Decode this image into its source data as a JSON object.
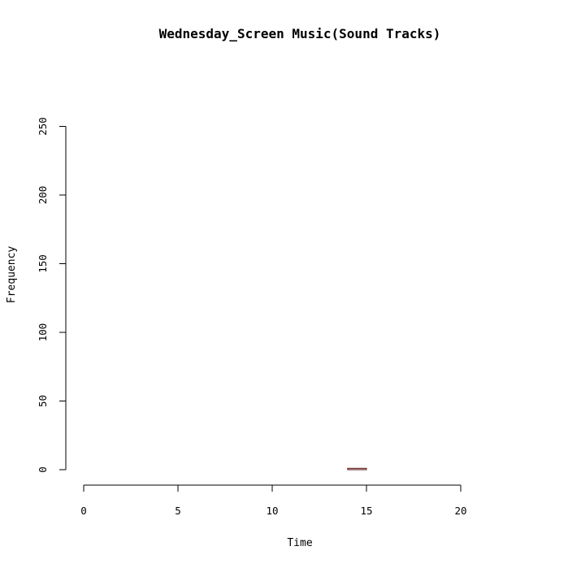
{
  "chart_data": {
    "type": "bar",
    "title": "Wednesday_Screen Music(Sound Tracks)",
    "xlabel": "Time",
    "ylabel": "Frequency",
    "xlim": [
      0,
      24
    ],
    "ylim": [
      0,
      250
    ],
    "x_ticks": [
      0,
      5,
      10,
      15,
      20
    ],
    "y_ticks": [
      0,
      50,
      100,
      150,
      200,
      250
    ],
    "x_tick_labels": [
      "0",
      "5",
      "10",
      "15",
      "20"
    ],
    "y_tick_labels": [
      "0",
      "50",
      "100",
      "150",
      "200",
      "250"
    ],
    "x": [
      0,
      1,
      2,
      3,
      4,
      5,
      6,
      7,
      8,
      9,
      10,
      11,
      12,
      13,
      14,
      15,
      16,
      17,
      18,
      19,
      20,
      21,
      22,
      23
    ],
    "values": [
      0,
      0,
      0,
      0,
      0,
      0,
      0,
      0,
      0,
      0,
      0,
      0,
      0,
      0,
      1,
      0,
      0,
      0,
      0,
      0,
      0,
      0,
      0,
      0
    ],
    "bar_color": "#e8c5c5",
    "bar_border_color": "#5a1a1a",
    "grid": false
  }
}
